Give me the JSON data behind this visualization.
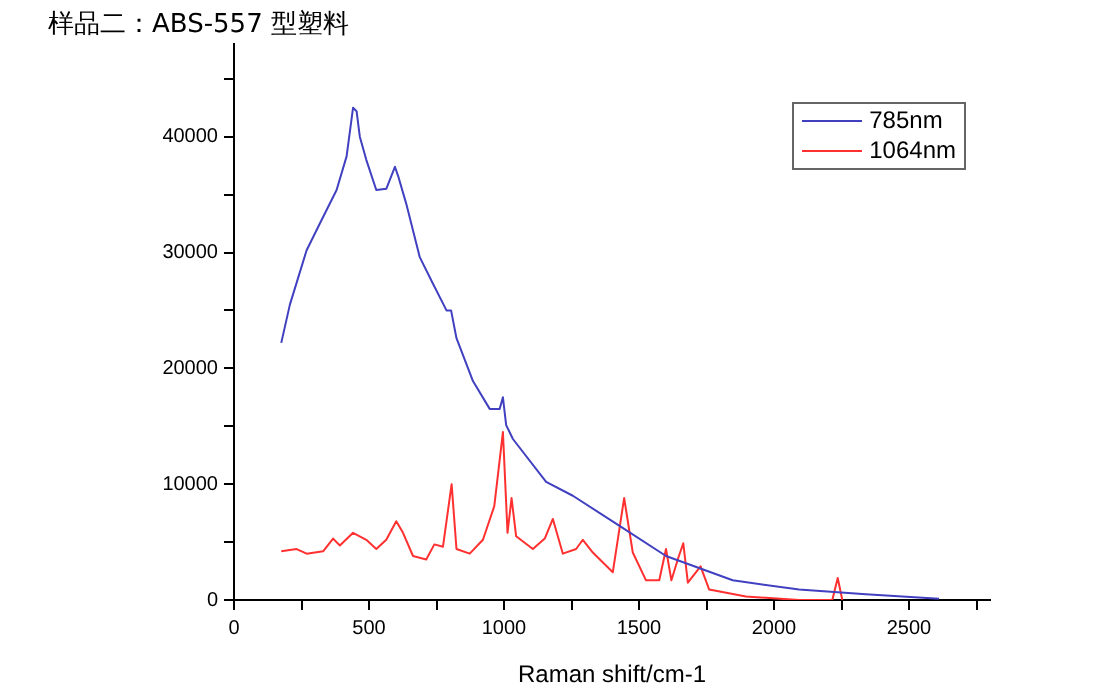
{
  "chart_data": {
    "type": "line",
    "title": "样品二：ABS-557 型塑料",
    "xlabel": "Raman shift/cm-1",
    "xlim": [
      0,
      2800
    ],
    "xticks": [
      0,
      {
        "value": 250,
        "label": null
      },
      500,
      {
        "value": 750,
        "label": null
      },
      1000,
      {
        "value": 1250,
        "label": null
      },
      1500,
      {
        "value": 1750,
        "label": null
      },
      2000,
      {
        "value": 2250,
        "label": null
      },
      2500,
      {
        "value": 2750,
        "label": null
      }
    ],
    "ylim": [
      0,
      48000
    ],
    "yticks": [
      0,
      {
        "value": 5000,
        "label": null
      },
      10000,
      {
        "value": 15000,
        "label": null
      },
      20000,
      {
        "value": 25000,
        "label": null
      },
      30000,
      {
        "value": 35000,
        "label": null
      },
      40000,
      {
        "value": 45000,
        "label": null
      }
    ],
    "grid": false,
    "legend": "top right",
    "marker": "none",
    "line_style": "solid",
    "series": [
      {
        "name": "785nm",
        "color": "#4040c0",
        "x": [
          175,
          207,
          269,
          318,
          380,
          417,
          441,
          454,
          466,
          490,
          527,
          564,
          596,
          608,
          638,
          688,
          737,
          787,
          804,
          824,
          885,
          947,
          984,
          996,
          1008,
          1033,
          1156,
          1255,
          1428,
          1600,
          1847,
          2093,
          2340,
          2611
        ],
        "values": [
          22200,
          25500,
          30200,
          32500,
          35400,
          38300,
          42500,
          42200,
          40000,
          38000,
          35400,
          35500,
          37400,
          36600,
          34200,
          29600,
          27300,
          25000,
          25000,
          22600,
          18900,
          16500,
          16500,
          17500,
          15100,
          13900,
          10200,
          9000,
          6400,
          3800,
          1700,
          900,
          500,
          100
        ]
      },
      {
        "name": "1064nm",
        "color": "#ff3030",
        "x": [
          175,
          232,
          269,
          330,
          367,
          392,
          441,
          490,
          527,
          564,
          601,
          626,
          663,
          712,
          742,
          774,
          806,
          824,
          873,
          922,
          964,
          996,
          1013,
          1028,
          1045,
          1107,
          1151,
          1181,
          1218,
          1267,
          1292,
          1329,
          1403,
          1445,
          1477,
          1526,
          1575,
          1600,
          1620,
          1645,
          1664,
          1681,
          1728,
          1760,
          1896,
          2093,
          2216,
          2236,
          2253
        ],
        "values": [
          4200,
          4400,
          4000,
          4200,
          5300,
          4700,
          5800,
          5200,
          4400,
          5200,
          6800,
          5800,
          3800,
          3500,
          4800,
          4600,
          10000,
          4400,
          4000,
          5200,
          8100,
          14500,
          5800,
          8800,
          5500,
          4400,
          5300,
          7000,
          4000,
          4400,
          5200,
          4100,
          2400,
          8800,
          4100,
          1700,
          1700,
          4400,
          1700,
          3600,
          4900,
          1500,
          2900,
          900,
          300,
          0,
          0,
          1900,
          0
        ]
      }
    ]
  }
}
